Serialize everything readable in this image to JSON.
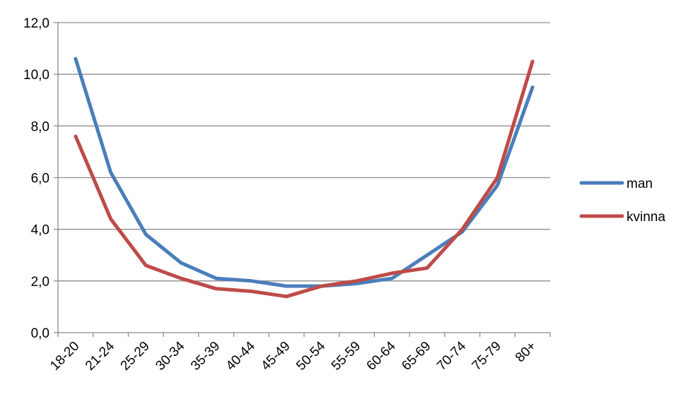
{
  "chart_data": {
    "type": "line",
    "title": "",
    "xlabel": "",
    "ylabel": "",
    "categories": [
      "18-20",
      "21-24",
      "25-29",
      "30-34",
      "35-39",
      "40-44",
      "45-49",
      "50-54",
      "55-59",
      "60-64",
      "65-69",
      "70-74",
      "75-79",
      "80+"
    ],
    "series": [
      {
        "name": "man",
        "color": "#4a7ebb",
        "values": [
          10.6,
          6.2,
          3.8,
          2.7,
          2.1,
          2.0,
          1.8,
          1.8,
          1.9,
          2.1,
          3.0,
          3.9,
          5.7,
          9.5
        ]
      },
      {
        "name": "kvinna",
        "color": "#be4b48",
        "values": [
          7.6,
          4.4,
          2.6,
          2.1,
          1.7,
          1.6,
          1.4,
          1.8,
          2.0,
          2.3,
          2.5,
          4.0,
          6.0,
          10.5
        ]
      }
    ],
    "ylim": [
      0,
      12
    ],
    "yticks": [
      "0,0",
      "2,0",
      "4,0",
      "6,0",
      "8,0",
      "10,0",
      "12,0"
    ],
    "grid": true,
    "legend": "right"
  }
}
